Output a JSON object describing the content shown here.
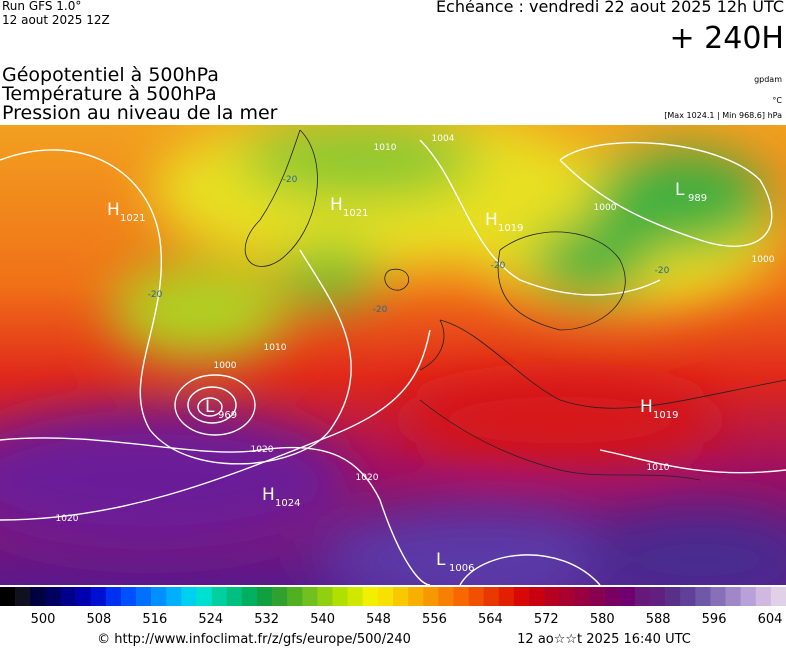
{
  "header": {
    "run": "Run GFS 1.0°",
    "run_date": "12 aout 2025 12Z",
    "valid": "Echéance : vendredi 22 aout 2025 12h UTC",
    "lead": "+ 240H",
    "titles": [
      "Géopotentiel à 500hPa",
      "Température à 500hPa",
      "Pression au niveau de la mer"
    ],
    "unit_geo": "gpdam",
    "unit_temp": "°C",
    "pressure_range": "[Max 1024.1 | Min 968.6] hPa"
  },
  "pressure_centers": [
    {
      "letter": "H",
      "value": "1021"
    },
    {
      "letter": "H",
      "value": "1021"
    },
    {
      "letter": "H",
      "value": "1019"
    },
    {
      "letter": "L",
      "value": "989"
    },
    {
      "letter": "L",
      "value": "969"
    },
    {
      "letter": "H",
      "value": "1019"
    },
    {
      "letter": "H",
      "value": "1024"
    },
    {
      "letter": "L",
      "value": "1006"
    }
  ],
  "contour_labels": [
    "1004",
    "1010",
    "1000",
    "1010",
    "1020",
    "1020",
    "1020",
    "1010",
    "1000",
    "1000",
    "-20",
    "-20",
    "-20",
    "-20",
    "-20"
  ],
  "colorbar_ticks": [
    "500",
    "508",
    "516",
    "524",
    "532",
    "540",
    "548",
    "556",
    "564",
    "572",
    "580",
    "588",
    "596",
    "604"
  ],
  "footer": {
    "url": "© http://www.infoclimat.fr/z/gfs/europe/500/240",
    "timestamp": "12 ao☆☆t 2025 16:40 UTC"
  }
}
